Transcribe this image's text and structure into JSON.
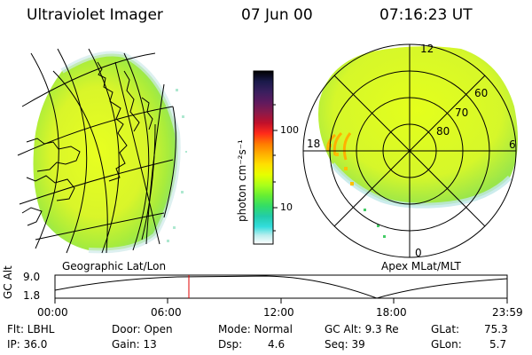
{
  "header": {
    "instrument": "Ultraviolet Imager",
    "date": "07 Jun 00",
    "time": "07:16:23 UT"
  },
  "colorbar": {
    "unit_label": "photon cm⁻²s⁻¹",
    "ticks": [
      "100",
      "10"
    ],
    "colors": [
      "#000000",
      "#1a1a4a",
      "#3a1f5e",
      "#5e1a5e",
      "#8a1a4a",
      "#c0102a",
      "#ff2a1a",
      "#ff7a00",
      "#ffb000",
      "#ffe000",
      "#e6ff00",
      "#aaff1a",
      "#66ee33",
      "#33dd66",
      "#22ccaa",
      "#33dddd",
      "#bbeeee",
      "#ffffff"
    ]
  },
  "left_map": {
    "caption": "Geographic Lat/Lon"
  },
  "right_map": {
    "caption": "Apex MLat/MLT",
    "mlt_labels": [
      "12",
      "18",
      "6",
      "0"
    ],
    "lat_labels": [
      "60",
      "70",
      "80"
    ]
  },
  "timeline": {
    "ylabel": "GC Alt",
    "y_ticks": [
      "9.0",
      "1.8"
    ],
    "x_ticks": [
      "00:00",
      "06:00",
      "12:00",
      "18:00",
      "23:59"
    ],
    "marker_time": "07:16"
  },
  "footer": {
    "flt": "Flt: LBHL",
    "ip": "IP: 36.0",
    "door": "Door: Open",
    "gain": "Gain: 13",
    "mode": "Mode: Normal",
    "dsp_label": "Dsp:",
    "dsp_value": "4.6",
    "gcalt": "GC Alt: 9.3 Re",
    "seq": "Seq: 39",
    "glat_label": "GLat:",
    "glat_value": "75.3",
    "glon_label": "GLon:",
    "glon_value": "5.7"
  }
}
